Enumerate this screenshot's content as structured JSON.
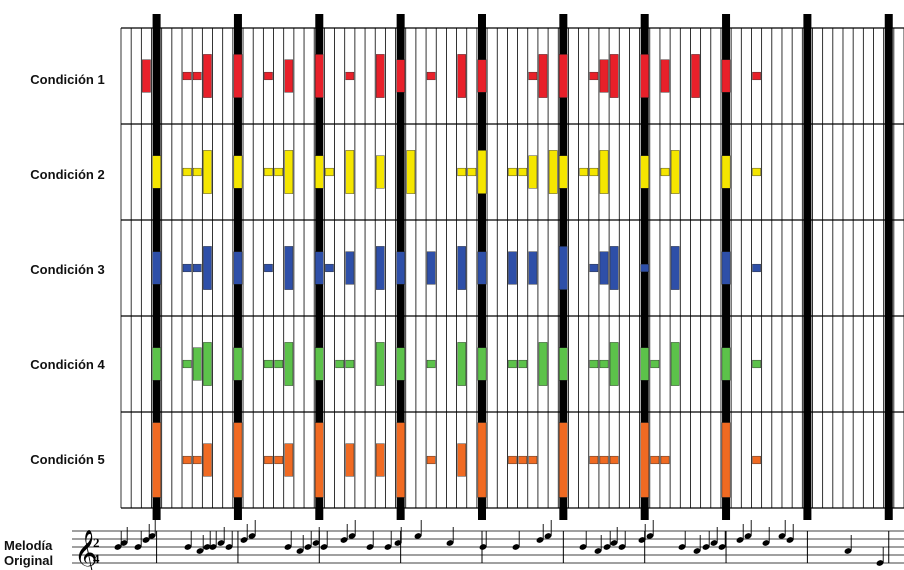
{
  "conditions": [
    {
      "label": "Condición 1",
      "color": "#e8202a"
    },
    {
      "label": "Condición 2",
      "color": "#f5e600"
    },
    {
      "label": "Condición 3",
      "color": "#2e4fa8"
    },
    {
      "label": "Condición 4",
      "color": "#5cc24a"
    },
    {
      "label": "Condición 5",
      "color": "#f06a22"
    }
  ],
  "melody": {
    "label_line1": "Melodía",
    "label_line2": "Original",
    "time_signature_top": "2",
    "time_signature_bottom": "4"
  },
  "grid": {
    "columns": 77,
    "bars": [
      3,
      11,
      19,
      27,
      35,
      43,
      51,
      59,
      67,
      75
    ],
    "bar_line_color": "#000000",
    "grid_line_color": "#000000"
  },
  "marks_per_condition": {
    "c1": [
      [
        2,
        "m"
      ],
      [
        6,
        "s"
      ],
      [
        7,
        "s"
      ],
      [
        8,
        "l"
      ],
      [
        11,
        "l"
      ],
      [
        14,
        "s"
      ],
      [
        16,
        "m"
      ],
      [
        19,
        "l"
      ],
      [
        22,
        "s"
      ],
      [
        25,
        "l"
      ],
      [
        27,
        "m"
      ],
      [
        30,
        "s"
      ],
      [
        33,
        "l"
      ],
      [
        35,
        "m"
      ],
      [
        40,
        "s"
      ],
      [
        41,
        "l"
      ],
      [
        43,
        "l"
      ],
      [
        46,
        "s"
      ],
      [
        47,
        "m"
      ],
      [
        48,
        "l"
      ],
      [
        51,
        "l"
      ],
      [
        53,
        "m"
      ],
      [
        56,
        "l"
      ],
      [
        59,
        "m"
      ],
      [
        62,
        "s"
      ]
    ],
    "c2": [
      [
        3,
        "m"
      ],
      [
        6,
        "s"
      ],
      [
        7,
        "s"
      ],
      [
        8,
        "l"
      ],
      [
        11,
        "m"
      ],
      [
        14,
        "s"
      ],
      [
        15,
        "s"
      ],
      [
        16,
        "l"
      ],
      [
        19,
        "m"
      ],
      [
        20,
        "s"
      ],
      [
        22,
        "l"
      ],
      [
        25,
        "m"
      ],
      [
        28,
        "l"
      ],
      [
        33,
        "s"
      ],
      [
        34,
        "s"
      ],
      [
        35,
        "l"
      ],
      [
        38,
        "s"
      ],
      [
        39,
        "s"
      ],
      [
        40,
        "m"
      ],
      [
        42,
        "l"
      ],
      [
        43,
        "m"
      ],
      [
        45,
        "s"
      ],
      [
        46,
        "s"
      ],
      [
        47,
        "l"
      ],
      [
        51,
        "m"
      ],
      [
        53,
        "s"
      ],
      [
        54,
        "l"
      ],
      [
        59,
        "m"
      ],
      [
        62,
        "s"
      ]
    ],
    "c3": [
      [
        3,
        "m"
      ],
      [
        6,
        "s"
      ],
      [
        7,
        "s"
      ],
      [
        8,
        "l"
      ],
      [
        11,
        "m"
      ],
      [
        14,
        "s"
      ],
      [
        16,
        "l"
      ],
      [
        19,
        "m"
      ],
      [
        20,
        "s"
      ],
      [
        22,
        "m"
      ],
      [
        25,
        "l"
      ],
      [
        27,
        "m"
      ],
      [
        30,
        "m"
      ],
      [
        33,
        "l"
      ],
      [
        35,
        "m"
      ],
      [
        38,
        "m"
      ],
      [
        40,
        "m"
      ],
      [
        43,
        "l"
      ],
      [
        46,
        "s"
      ],
      [
        47,
        "m"
      ],
      [
        48,
        "l"
      ],
      [
        51,
        "s"
      ],
      [
        54,
        "l"
      ],
      [
        59,
        "m"
      ],
      [
        62,
        "s"
      ]
    ],
    "c4": [
      [
        3,
        "m"
      ],
      [
        6,
        "s"
      ],
      [
        7,
        "m"
      ],
      [
        8,
        "l"
      ],
      [
        11,
        "m"
      ],
      [
        14,
        "s"
      ],
      [
        15,
        "s"
      ],
      [
        16,
        "l"
      ],
      [
        19,
        "m"
      ],
      [
        21,
        "s"
      ],
      [
        22,
        "s"
      ],
      [
        25,
        "l"
      ],
      [
        27,
        "m"
      ],
      [
        30,
        "s"
      ],
      [
        33,
        "l"
      ],
      [
        35,
        "m"
      ],
      [
        38,
        "s"
      ],
      [
        39,
        "s"
      ],
      [
        41,
        "l"
      ],
      [
        43,
        "m"
      ],
      [
        46,
        "s"
      ],
      [
        47,
        "s"
      ],
      [
        48,
        "l"
      ],
      [
        51,
        "m"
      ],
      [
        52,
        "s"
      ],
      [
        54,
        "l"
      ],
      [
        59,
        "m"
      ],
      [
        62,
        "s"
      ]
    ],
    "c5": [
      [
        3,
        "xl"
      ],
      [
        6,
        "s"
      ],
      [
        7,
        "s"
      ],
      [
        8,
        "m"
      ],
      [
        11,
        "xl"
      ],
      [
        14,
        "s"
      ],
      [
        15,
        "s"
      ],
      [
        16,
        "m"
      ],
      [
        19,
        "xl"
      ],
      [
        22,
        "m"
      ],
      [
        25,
        "m"
      ],
      [
        27,
        "xl"
      ],
      [
        30,
        "s"
      ],
      [
        33,
        "m"
      ],
      [
        35,
        "xl"
      ],
      [
        38,
        "s"
      ],
      [
        39,
        "s"
      ],
      [
        40,
        "s"
      ],
      [
        43,
        "xl"
      ],
      [
        46,
        "s"
      ],
      [
        47,
        "s"
      ],
      [
        48,
        "s"
      ],
      [
        51,
        "xl"
      ],
      [
        52,
        "s"
      ],
      [
        53,
        "s"
      ],
      [
        59,
        "xl"
      ],
      [
        62,
        "s"
      ]
    ]
  }
}
